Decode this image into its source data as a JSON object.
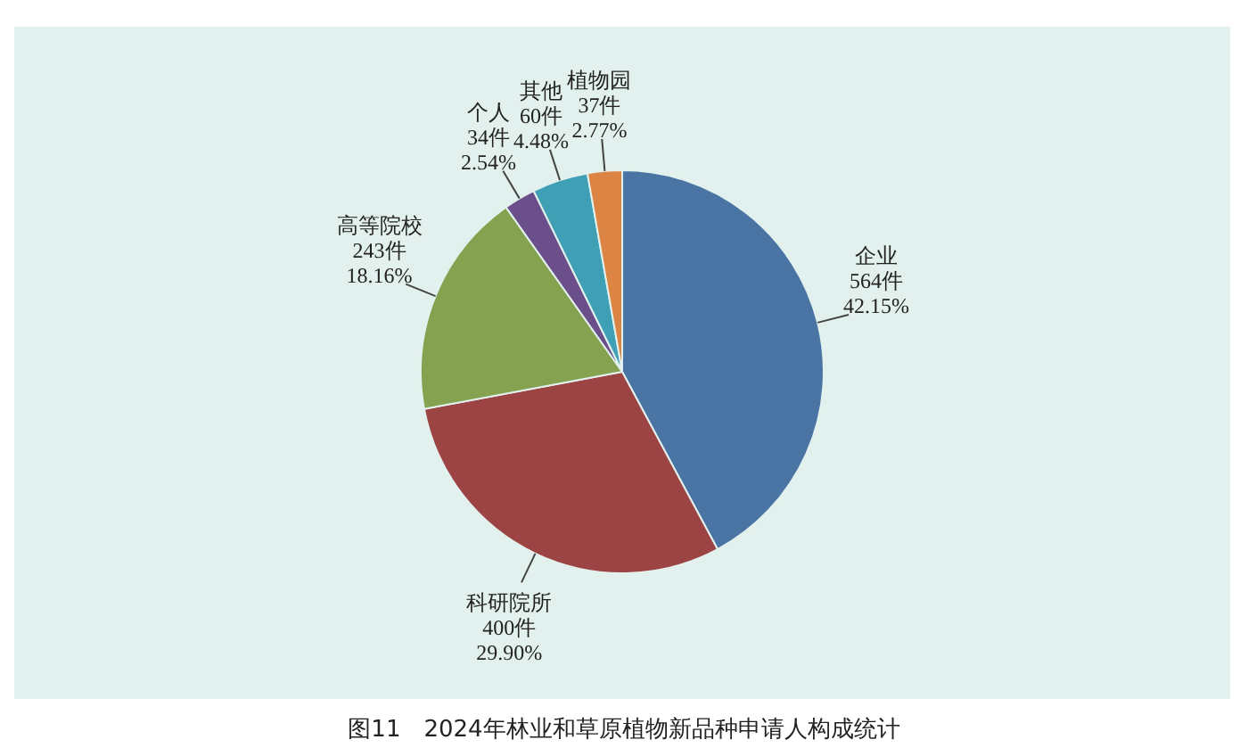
{
  "chart_data": {
    "type": "pie",
    "title": "图11　2024年林业和草原植物新品种申请人构成统计",
    "categories": [
      "企业",
      "科研院所",
      "高等院校",
      "个人",
      "其他",
      "植物园"
    ],
    "values": [
      564,
      400,
      243,
      34,
      60,
      37
    ],
    "value_labels": [
      "564件 42.15%",
      "400件 29.90%",
      "243件 18.16%",
      "34件 2.54%",
      "60件 4.48%",
      "37件 2.77%"
    ],
    "colors": [
      "#4a74a3",
      "#9c4443",
      "#84a24f",
      "#6a4f8a",
      "#3f9fb5",
      "#dc8443"
    ],
    "legend": false
  }
}
